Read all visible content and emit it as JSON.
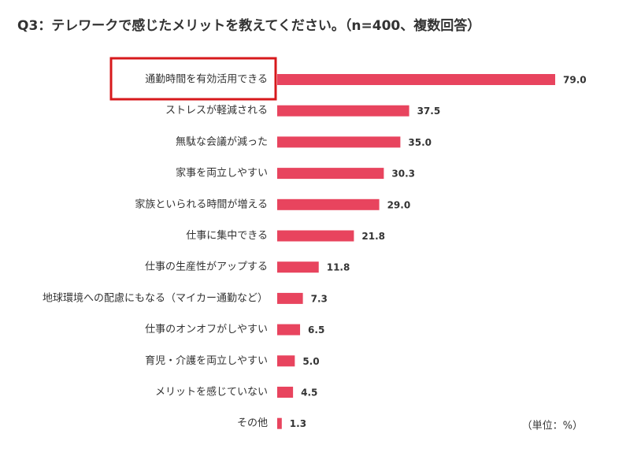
{
  "chart_data": {
    "type": "bar",
    "orientation": "horizontal",
    "title": "Q3：テレワークで感じたメリットを教えてください。（n=400、複数回答）",
    "unit_note": "（単位：%）",
    "categories": [
      "通勤時間を有効活用できる",
      "ストレスが軽減される",
      "無駄な会議が減った",
      "家事を両立しやすい",
      "家族といられる時間が増える",
      "仕事に集中できる",
      "仕事の生産性がアップする",
      "地球環境への配慮にもなる（マイカー通勤など）",
      "仕事のオンオフがしやすい",
      "育児・介護を両立しやすい",
      "メリットを感じていない",
      "その他"
    ],
    "values": [
      79.0,
      37.5,
      35.0,
      30.3,
      29.0,
      21.8,
      11.8,
      7.3,
      6.5,
      5.0,
      4.5,
      1.3
    ],
    "value_labels": [
      "79.0",
      "37.5",
      "35.0",
      "30.3",
      "29.0",
      "21.8",
      "11.8",
      "7.3",
      "6.5",
      "5.0",
      "4.5",
      "1.3"
    ],
    "color": "#e8445e"
  }
}
